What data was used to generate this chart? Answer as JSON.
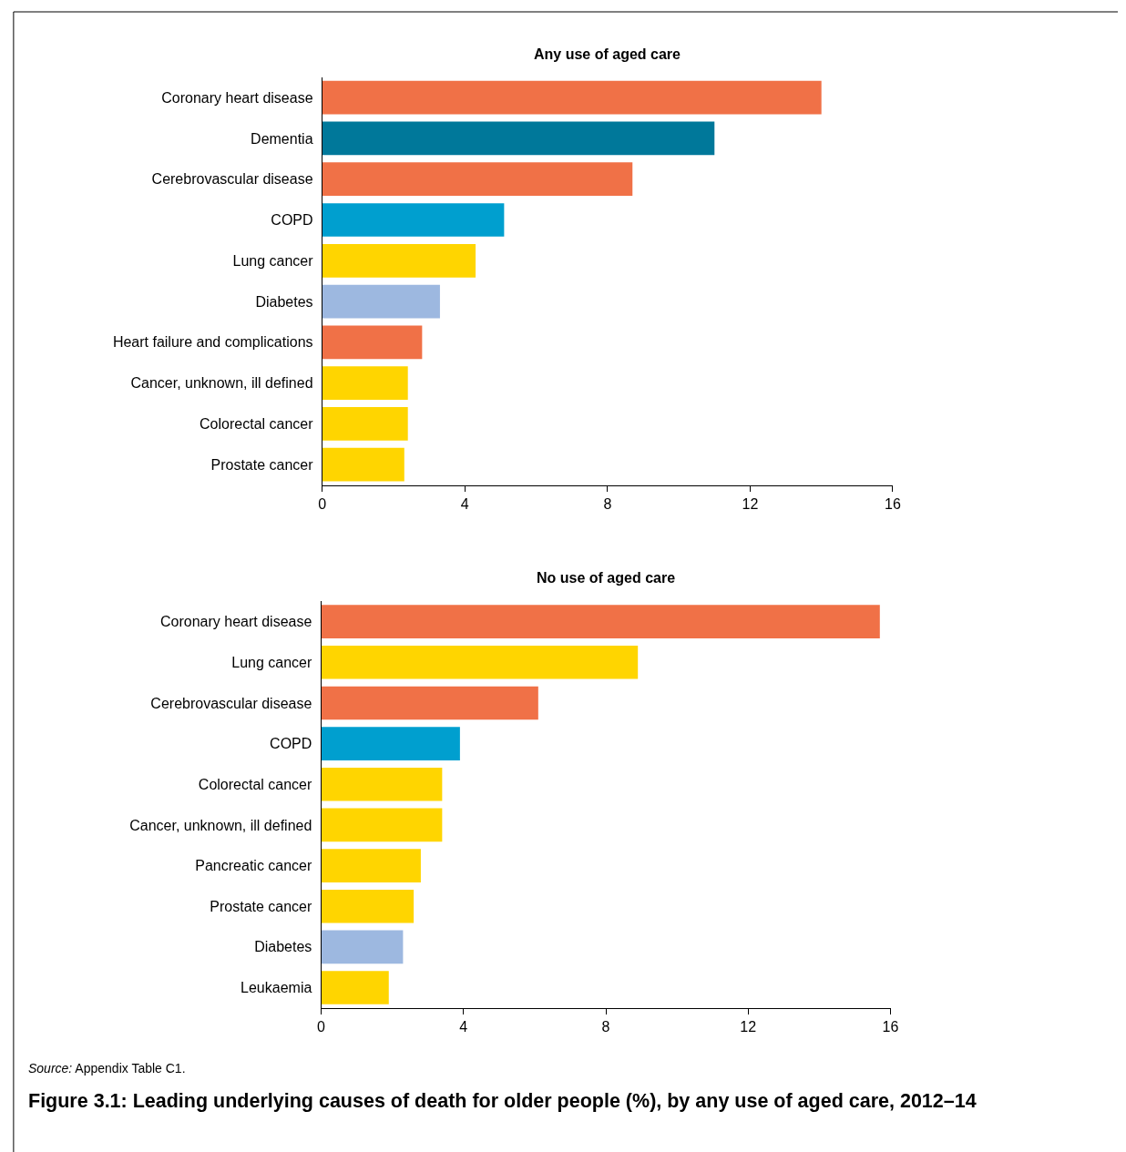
{
  "chart_data": [
    {
      "type": "bar",
      "orientation": "horizontal",
      "title": "Any use of aged care",
      "categories": [
        "Coronary heart disease",
        "Dementia",
        "Cerebrovascular disease",
        "COPD",
        "Lung cancer",
        "Diabetes",
        "Heart failure and complications",
        "Cancer, unknown, ill defined",
        "Colorectal cancer",
        "Prostate cancer"
      ],
      "values": [
        14.0,
        11.0,
        8.7,
        5.1,
        4.3,
        3.3,
        2.8,
        2.4,
        2.4,
        2.3
      ],
      "colors": [
        "#f07147",
        "#00789a",
        "#f07147",
        "#009fcf",
        "#ffd500",
        "#9db8e0",
        "#f07147",
        "#ffd500",
        "#ffd500",
        "#ffd500"
      ],
      "xlim": [
        0,
        16
      ],
      "xticks": [
        0,
        4,
        8,
        12,
        16
      ]
    },
    {
      "type": "bar",
      "orientation": "horizontal",
      "title": "No use of aged care",
      "categories": [
        "Coronary heart disease",
        "Lung cancer",
        "Cerebrovascular disease",
        "COPD",
        "Colorectal cancer",
        "Cancer, unknown, ill defined",
        "Pancreatic cancer",
        "Prostate cancer",
        "Diabetes",
        "Leukaemia"
      ],
      "values": [
        15.7,
        8.9,
        6.1,
        3.9,
        3.4,
        3.4,
        2.8,
        2.6,
        2.3,
        1.9
      ],
      "colors": [
        "#f07147",
        "#ffd500",
        "#f07147",
        "#009fcf",
        "#ffd500",
        "#ffd500",
        "#ffd500",
        "#ffd500",
        "#9db8e0",
        "#ffd500"
      ],
      "xlim": [
        0,
        16
      ],
      "xticks": [
        0,
        4,
        8,
        12,
        16
      ],
      "annotations": [
        "Source: Appendix Table C1.",
        "Figure 3.1: Leading underlying causes of death for older people (%), by any use of aged care, 2012–14"
      ]
    }
  ]
}
